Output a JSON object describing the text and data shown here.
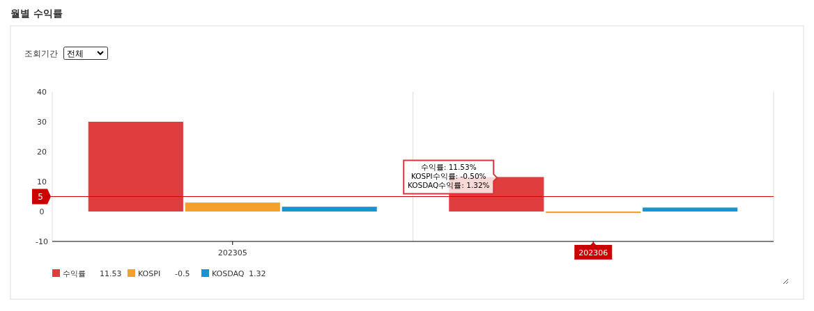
{
  "chart_data": {
    "type": "bar",
    "title": "월별 수익률",
    "categories": [
      "202305",
      "202306"
    ],
    "series": [
      {
        "name": "수익률",
        "color": "#e03e3e",
        "values": [
          30,
          11.53
        ]
      },
      {
        "name": "KOSPI",
        "color": "#f5a02a",
        "values": [
          3,
          -0.5
        ]
      },
      {
        "name": "KOSDAQ",
        "color": "#1a93d1",
        "values": [
          1.6,
          1.32
        ]
      }
    ],
    "ylim": [
      -10,
      40
    ],
    "yticks": [
      -10,
      0,
      10,
      20,
      30,
      40
    ],
    "grid": "x",
    "legend": "bottom left",
    "ref_lines": [
      {
        "axis": "y",
        "value": 5,
        "label": "5",
        "color": "#cc0000"
      }
    ],
    "annotations": [
      "조회기간",
      "전체",
      "수익률: 11.53%\nKOSPI수익률: -0.50%\nKOSDAQ수익률: 1.32%",
      "11.53",
      "-0.5",
      "1.32"
    ]
  }
}
